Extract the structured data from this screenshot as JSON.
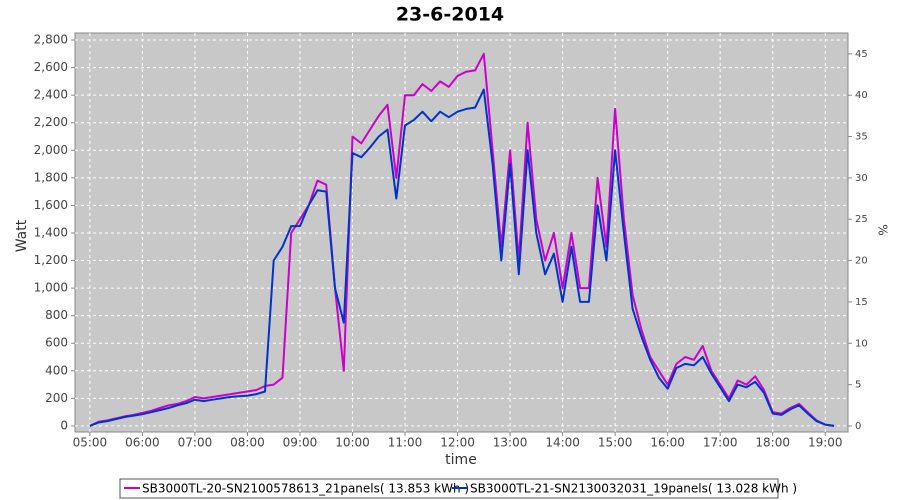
{
  "chart_data": {
    "type": "line",
    "title": "23-6-2014",
    "xlabel": "time",
    "ylabel": "Watt",
    "y2label": "%",
    "x": [
      "05:00",
      "05:10",
      "05:20",
      "05:30",
      "05:40",
      "05:50",
      "06:00",
      "06:10",
      "06:20",
      "06:30",
      "06:40",
      "06:50",
      "07:00",
      "07:10",
      "07:20",
      "07:30",
      "07:40",
      "07:50",
      "08:00",
      "08:10",
      "08:20",
      "08:30",
      "08:40",
      "08:50",
      "09:00",
      "09:10",
      "09:20",
      "09:30",
      "09:40",
      "09:50",
      "10:00",
      "10:10",
      "10:20",
      "10:30",
      "10:40",
      "10:50",
      "11:00",
      "11:10",
      "11:20",
      "11:30",
      "11:40",
      "11:50",
      "12:00",
      "12:10",
      "12:20",
      "12:30",
      "12:40",
      "12:50",
      "13:00",
      "13:10",
      "13:20",
      "13:30",
      "13:40",
      "13:50",
      "14:00",
      "14:10",
      "14:20",
      "14:30",
      "14:40",
      "14:50",
      "15:00",
      "15:10",
      "15:20",
      "15:30",
      "15:40",
      "15:50",
      "16:00",
      "16:10",
      "16:20",
      "16:30",
      "16:40",
      "16:50",
      "17:00",
      "17:10",
      "17:20",
      "17:30",
      "17:40",
      "17:50",
      "18:00",
      "18:10",
      "18:20",
      "18:30",
      "18:40",
      "18:50",
      "19:00",
      "19:10"
    ],
    "series": [
      {
        "name": "SB3000TL-20-SN2100578613_21panels( 13.853 kWh )",
        "color": "#cc00cc",
        "values": [
          0,
          30,
          40,
          55,
          70,
          80,
          95,
          110,
          130,
          150,
          160,
          180,
          210,
          200,
          210,
          220,
          230,
          240,
          250,
          260,
          290,
          300,
          350,
          1400,
          1500,
          1600,
          1780,
          1750,
          1000,
          400,
          2100,
          2050,
          2150,
          2250,
          2330,
          1800,
          2400,
          2400,
          2480,
          2430,
          2500,
          2460,
          2540,
          2570,
          2580,
          2700,
          2000,
          1300,
          2000,
          1200,
          2200,
          1500,
          1200,
          1400,
          1000,
          1400,
          1000,
          1000,
          1800,
          1300,
          2300,
          1500,
          950,
          700,
          500,
          400,
          300,
          450,
          500,
          480,
          580,
          400,
          300,
          200,
          330,
          300,
          360,
          260,
          100,
          90,
          130,
          160,
          100,
          40,
          10,
          0
        ]
      },
      {
        "name": "SB3000TL-21-SN2130032031_19panels( 13.028 kWh )",
        "color": "#0033cc",
        "values": [
          0,
          25,
          35,
          50,
          65,
          75,
          85,
          100,
          115,
          130,
          150,
          165,
          190,
          180,
          190,
          200,
          210,
          215,
          220,
          230,
          250,
          1200,
          1300,
          1450,
          1450,
          1600,
          1710,
          1700,
          1000,
          750,
          1980,
          1950,
          2020,
          2100,
          2150,
          1650,
          2180,
          2220,
          2280,
          2210,
          2280,
          2240,
          2280,
          2300,
          2310,
          2440,
          1900,
          1200,
          1900,
          1100,
          2000,
          1400,
          1100,
          1250,
          900,
          1300,
          900,
          900,
          1600,
          1200,
          2000,
          1400,
          850,
          650,
          480,
          350,
          270,
          420,
          450,
          440,
          500,
          380,
          280,
          180,
          300,
          280,
          320,
          240,
          90,
          80,
          120,
          150,
          90,
          35,
          10,
          0
        ]
      }
    ],
    "xlim": [
      "04:43",
      "19:26"
    ],
    "xticks": [
      "05:00",
      "06:00",
      "07:00",
      "08:00",
      "09:00",
      "10:00",
      "11:00",
      "12:00",
      "13:00",
      "14:00",
      "15:00",
      "16:00",
      "17:00",
      "18:00",
      "19:00"
    ],
    "ylim": [
      -44,
      2851
    ],
    "yticks": [
      0,
      200,
      400,
      600,
      800,
      {
        "value": 1000,
        "label": "1,000"
      },
      {
        "value": 1200,
        "label": "1,200"
      },
      {
        "value": 1400,
        "label": "1,400"
      },
      {
        "value": 1600,
        "label": "1,600"
      },
      {
        "value": 1800,
        "label": "1,800"
      },
      {
        "value": 2000,
        "label": "2,000"
      },
      {
        "value": 2200,
        "label": "2,200"
      },
      {
        "value": 2400,
        "label": "2,400"
      },
      {
        "value": 2600,
        "label": "2,600"
      },
      {
        "value": 2800,
        "label": "2,800"
      }
    ],
    "y2lim": [
      -0.73,
      47.52
    ],
    "y2ticks": [
      0,
      5,
      10,
      15,
      20,
      25,
      30,
      35,
      40,
      45
    ],
    "grid": true,
    "legend": "bottom"
  }
}
